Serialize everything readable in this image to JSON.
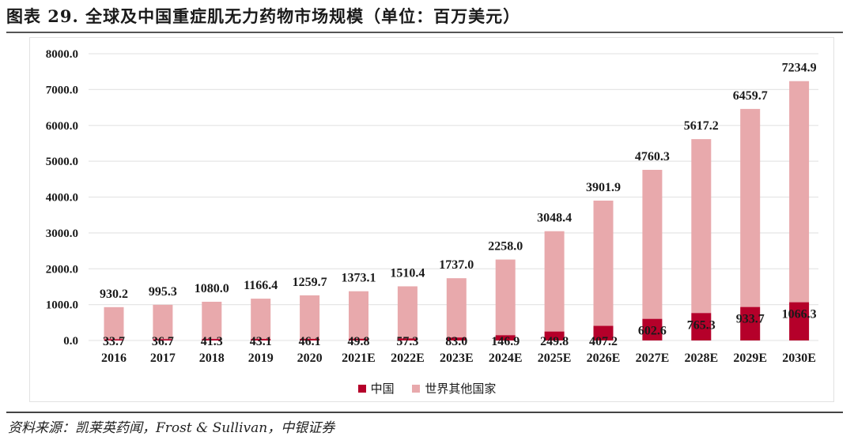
{
  "header": {
    "title": "图表 29. 全球及中国重症肌无力药物市场规模（单位：百万美元）"
  },
  "footer": {
    "source": "资料来源：凯莱英药闻，Frost & Sullivan，中银证券"
  },
  "colors": {
    "china": "#b5002a",
    "rest_of_world": "#e8a9ac",
    "gridline": "#e6e6e6"
  },
  "chart_data": {
    "type": "bar",
    "stacked": true,
    "title": "全球及中国重症肌无力药物市场规模（单位：百万美元）",
    "xlabel": "",
    "ylabel": "",
    "ylim": [
      0,
      8000
    ],
    "yticks": [
      0,
      1000,
      2000,
      3000,
      4000,
      5000,
      6000,
      7000,
      8000
    ],
    "ytick_labels": [
      "0.0",
      "1000.0",
      "2000.0",
      "3000.0",
      "4000.0",
      "5000.0",
      "6000.0",
      "7000.0",
      "8000.0"
    ],
    "grid": true,
    "legend_position": "bottom",
    "categories": [
      "2016",
      "2017",
      "2018",
      "2019",
      "2020",
      "2021E",
      "2022E",
      "2023E",
      "2024E",
      "2025E",
      "2026E",
      "2027E",
      "2028E",
      "2029E",
      "2030E"
    ],
    "totals": [
      930.2,
      995.3,
      1080.0,
      1166.4,
      1259.7,
      1373.1,
      1510.4,
      1737.0,
      2258.0,
      3048.4,
      3901.9,
      4760.3,
      5617.2,
      6459.7,
      7234.9
    ],
    "total_labels": [
      "930.2",
      "995.3",
      "1080.0",
      "1166.4",
      "1259.7",
      "1373.1",
      "1510.4",
      "1737.0",
      "2258.0",
      "3048.4",
      "3901.9",
      "4760.3",
      "5617.2",
      "6459.7",
      "7234.9"
    ],
    "series": [
      {
        "name": "中国",
        "color": "#b5002a",
        "values": [
          33.7,
          36.7,
          41.3,
          43.1,
          46.1,
          49.8,
          57.3,
          83.0,
          146.9,
          249.8,
          407.2,
          602.6,
          765.3,
          933.7,
          1066.3
        ],
        "labels": [
          "33.7",
          "36.7",
          "41.3",
          "43.1",
          "46.1",
          "49.8",
          "57.3",
          "83.0",
          "146.9",
          "249.8",
          "407.2",
          "602.6",
          "765.3",
          "933.7",
          "1066.3"
        ]
      },
      {
        "name": "世界其他国家",
        "color": "#e8a9ac",
        "values": [
          896.5,
          958.6,
          1038.7,
          1123.3,
          1213.6,
          1323.3,
          1453.1,
          1654.0,
          2111.1,
          2798.6,
          3494.7,
          4157.7,
          4851.9,
          5526.0,
          6168.6
        ]
      }
    ]
  }
}
